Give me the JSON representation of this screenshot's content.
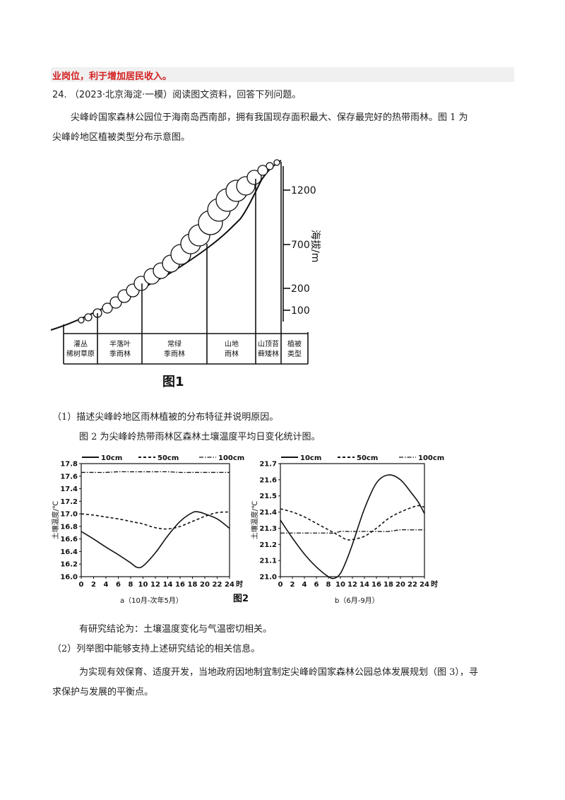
{
  "prev_answer_tail": "业岗位，利于增加居民收入。",
  "question": {
    "number": "24.",
    "source": "（2023·北京海淀·一模）",
    "prompt": "阅读图文资料，回答下列问题。",
    "intro_line1": "尖峰岭国家森林公园位于海南岛西南部，拥有我国现存面积最大、保存最完好的热带雨林。图 1 为",
    "intro_line2": "尖峰岭地区植被类型分布示意图。",
    "sub1": "（1）描述尖峰岭地区雨林植被的分布特征并说明原因。",
    "fig2_intro": "图 2 为尖峰岭热带雨林区森林土壤温度平均日变化统计图。",
    "conclusion": "有研究结论为：土壤温度变化与气温密切相关。",
    "sub2": "（2）列举图中能够支持上述研究结论的相关信息。",
    "para3_line1": "为实现有效保育、适度开发，当地政府因地制宜制定尖峰岭国家森林公园总体发展规划（图 3），寻",
    "para3_line2": "求保护与发展的平衡点。"
  },
  "figure1": {
    "caption": "图1",
    "axis_label": "海拔/m",
    "ticks": [
      "1200",
      "700",
      "200",
      "100"
    ],
    "zones": [
      {
        "line1": "灌丛",
        "line2": "稀树草原"
      },
      {
        "line1": "半落叶",
        "line2": "季雨林"
      },
      {
        "line1": "常绿",
        "line2": "季雨林"
      },
      {
        "line1": "山地",
        "line2": "雨林"
      },
      {
        "line1": "山顶苔",
        "line2": "藓矮林"
      },
      {
        "line1": "植被",
        "line2": "类型"
      }
    ]
  },
  "figure2": {
    "caption": "图2",
    "legend": [
      "10cm",
      "50cm",
      "100cm"
    ],
    "ylabel": "土壤温度/℃",
    "x_unit": "时",
    "xticks": [
      "0",
      "2",
      "4",
      "6",
      "8",
      "10",
      "12",
      "14",
      "16",
      "18",
      "20",
      "22",
      "24"
    ]
  },
  "chart_data": [
    {
      "type": "line",
      "title": "a（10月-次年5月）",
      "xlabel": "时",
      "ylabel": "土壤温度/℃",
      "xlim": [
        0,
        24
      ],
      "ylim": [
        16.0,
        17.8
      ],
      "yticks": [
        "17.8",
        "17.6",
        "17.4",
        "17.2",
        "17.0",
        "16.8",
        "16.6",
        "16.4",
        "16.2",
        "16.0"
      ],
      "x": [
        0,
        2,
        4,
        6,
        8,
        9,
        10,
        12,
        14,
        16,
        18,
        19,
        20,
        22,
        24
      ],
      "series": [
        {
          "name": "10cm",
          "style": "solid",
          "values": [
            16.72,
            16.6,
            16.47,
            16.35,
            16.22,
            16.15,
            16.17,
            16.38,
            16.65,
            16.88,
            17.02,
            17.03,
            17.0,
            16.92,
            16.77
          ]
        },
        {
          "name": "50cm",
          "style": "dashed",
          "values": [
            17.0,
            16.98,
            16.95,
            16.92,
            16.88,
            16.86,
            16.84,
            16.78,
            16.76,
            16.8,
            16.88,
            16.92,
            16.96,
            17.02,
            17.03
          ]
        },
        {
          "name": "100cm",
          "style": "dashdot",
          "values": [
            17.66,
            17.66,
            17.66,
            17.67,
            17.67,
            17.67,
            17.67,
            17.67,
            17.67,
            17.66,
            17.66,
            17.66,
            17.66,
            17.66,
            17.66
          ]
        }
      ]
    },
    {
      "type": "line",
      "title": "b（6月-9月）",
      "xlabel": "时",
      "ylabel": "土壤温度/℃",
      "xlim": [
        0,
        24
      ],
      "ylim": [
        21.0,
        21.7
      ],
      "yticks": [
        "21.7",
        "21.6",
        "21.5",
        "21.4",
        "21.3",
        "21.2",
        "21.1",
        "21.0"
      ],
      "x": [
        0,
        2,
        4,
        6,
        8,
        9,
        10,
        11,
        12,
        14,
        16,
        18,
        20,
        22,
        23,
        24
      ],
      "series": [
        {
          "name": "10cm",
          "style": "solid",
          "values": [
            21.35,
            21.24,
            21.14,
            21.06,
            21.0,
            20.99,
            21.02,
            21.1,
            21.2,
            21.42,
            21.58,
            21.63,
            21.6,
            21.51,
            21.46,
            21.39
          ]
        },
        {
          "name": "50cm",
          "style": "dashed",
          "values": [
            21.42,
            21.4,
            21.37,
            21.33,
            21.29,
            21.27,
            21.25,
            21.23,
            21.23,
            21.25,
            21.3,
            21.36,
            21.4,
            21.43,
            21.44,
            21.43
          ]
        },
        {
          "name": "100cm",
          "style": "dashdot",
          "values": [
            21.27,
            21.27,
            21.27,
            21.27,
            21.27,
            21.27,
            21.28,
            21.28,
            21.28,
            21.28,
            21.28,
            21.28,
            21.29,
            21.29,
            21.29,
            21.29
          ]
        }
      ]
    }
  ]
}
